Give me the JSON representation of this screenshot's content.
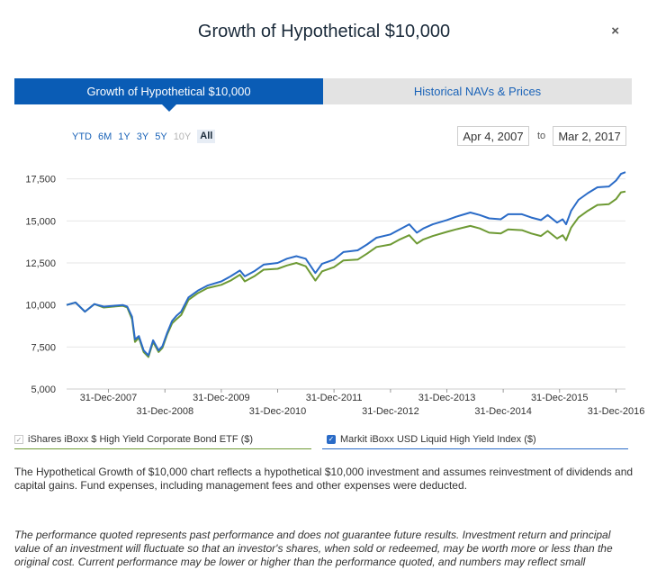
{
  "modal": {
    "title": "Growth of Hypothetical $10,000",
    "close_label": "×"
  },
  "tabs": [
    {
      "label": "Growth of Hypothetical $10,000",
      "active": true
    },
    {
      "label": "Historical NAVs & Prices",
      "active": false
    }
  ],
  "ranges": [
    {
      "label": "YTD",
      "state": "enabled"
    },
    {
      "label": "6M",
      "state": "enabled"
    },
    {
      "label": "1Y",
      "state": "enabled"
    },
    {
      "label": "3Y",
      "state": "enabled"
    },
    {
      "label": "5Y",
      "state": "enabled"
    },
    {
      "label": "10Y",
      "state": "disabled"
    },
    {
      "label": "All",
      "state": "active"
    }
  ],
  "date_range": {
    "from": "Apr 4, 2007",
    "separator": "to",
    "to": "Mar 2, 2017"
  },
  "legend": [
    {
      "label": "iShares iBoxx $ High Yield Corporate Bond ETF ($)",
      "checked": true,
      "color": "#6e9a34"
    },
    {
      "label": "Markit iBoxx USD Liquid High Yield Index ($)",
      "checked": true,
      "color": "#2a6bc7"
    }
  ],
  "description": "The Hypothetical Growth of $10,000 chart reflects a hypothetical $10,000 investment and assumes reinvestment of dividends and capital gains. Fund expenses, including management fees and other expenses were deducted.",
  "disclaimer": "The performance quoted represents past performance and does not guarantee future results. Investment return and principal value of an investment will fluctuate so that an investor's shares, when sold or redeemed, may be worth more or less than the original cost. Current performance may be lower or higher than the performance quoted, and numbers may reflect small",
  "chart_data": {
    "type": "line",
    "title": "",
    "xlabel": "",
    "ylabel": "",
    "x_range": [
      "2007-04-04",
      "2017-03-02"
    ],
    "ylim": [
      5000,
      18500
    ],
    "y_ticks": [
      {
        "value": 5000,
        "label": "5,000"
      },
      {
        "value": 7500,
        "label": "7,500"
      },
      {
        "value": 10000,
        "label": "10,000"
      },
      {
        "value": 12500,
        "label": "12,500"
      },
      {
        "value": 15000,
        "label": "15,000"
      },
      {
        "value": 17500,
        "label": "17,500"
      }
    ],
    "x_ticks": [
      {
        "date": "2007-12-31",
        "label": "31-Dec-2007"
      },
      {
        "date": "2008-12-31",
        "label": "31-Dec-2008"
      },
      {
        "date": "2009-12-31",
        "label": "31-Dec-2009"
      },
      {
        "date": "2010-12-31",
        "label": "31-Dec-2010"
      },
      {
        "date": "2011-12-31",
        "label": "31-Dec-2011"
      },
      {
        "date": "2012-12-31",
        "label": "31-Dec-2012"
      },
      {
        "date": "2013-12-31",
        "label": "31-Dec-2013"
      },
      {
        "date": "2014-12-31",
        "label": "31-Dec-2014"
      },
      {
        "date": "2015-12-31",
        "label": "31-Dec-2015"
      },
      {
        "date": "2016-12-31",
        "label": "31-Dec-2016"
      }
    ],
    "grid": {
      "horizontal": true,
      "vertical": false
    },
    "legend_position": "bottom",
    "series": [
      {
        "name": "iShares iBoxx $ High Yield Corporate Bond ETF ($)",
        "color": "#6e9a34",
        "points": [
          [
            "2007-04-04",
            10000
          ],
          [
            "2007-06-01",
            10150
          ],
          [
            "2007-08-01",
            9600
          ],
          [
            "2007-10-01",
            10050
          ],
          [
            "2007-12-01",
            9850
          ],
          [
            "2008-02-01",
            9900
          ],
          [
            "2008-04-01",
            9950
          ],
          [
            "2008-05-01",
            9850
          ],
          [
            "2008-06-01",
            9150
          ],
          [
            "2008-06-20",
            7800
          ],
          [
            "2008-07-15",
            8050
          ],
          [
            "2008-08-15",
            7200
          ],
          [
            "2008-09-15",
            6900
          ],
          [
            "2008-10-15",
            7800
          ],
          [
            "2008-11-20",
            7200
          ],
          [
            "2008-12-15",
            7450
          ],
          [
            "2009-01-15",
            8250
          ],
          [
            "2009-02-15",
            8900
          ],
          [
            "2009-03-15",
            9150
          ],
          [
            "2009-04-15",
            9400
          ],
          [
            "2009-06-01",
            10300
          ],
          [
            "2009-08-01",
            10700
          ],
          [
            "2009-10-01",
            11000
          ],
          [
            "2009-12-31",
            11200
          ],
          [
            "2010-03-01",
            11450
          ],
          [
            "2010-05-01",
            11800
          ],
          [
            "2010-06-01",
            11400
          ],
          [
            "2010-08-01",
            11700
          ],
          [
            "2010-10-01",
            12100
          ],
          [
            "2010-12-31",
            12150
          ],
          [
            "2011-03-01",
            12350
          ],
          [
            "2011-05-01",
            12500
          ],
          [
            "2011-07-01",
            12300
          ],
          [
            "2011-09-01",
            11450
          ],
          [
            "2011-10-15",
            12000
          ],
          [
            "2011-12-31",
            12250
          ],
          [
            "2012-03-01",
            12650
          ],
          [
            "2012-06-01",
            12700
          ],
          [
            "2012-08-01",
            13050
          ],
          [
            "2012-10-01",
            13450
          ],
          [
            "2012-12-31",
            13600
          ],
          [
            "2013-03-01",
            13900
          ],
          [
            "2013-05-01",
            14150
          ],
          [
            "2013-06-20",
            13650
          ],
          [
            "2013-08-01",
            13900
          ],
          [
            "2013-10-01",
            14100
          ],
          [
            "2013-12-31",
            14350
          ],
          [
            "2014-03-01",
            14500
          ],
          [
            "2014-06-01",
            14700
          ],
          [
            "2014-08-01",
            14550
          ],
          [
            "2014-10-01",
            14300
          ],
          [
            "2014-12-15",
            14250
          ],
          [
            "2015-02-01",
            14500
          ],
          [
            "2015-05-01",
            14450
          ],
          [
            "2015-07-01",
            14250
          ],
          [
            "2015-09-01",
            14100
          ],
          [
            "2015-10-15",
            14400
          ],
          [
            "2015-12-15",
            13950
          ],
          [
            "2016-01-20",
            14150
          ],
          [
            "2016-02-11",
            13850
          ],
          [
            "2016-03-15",
            14600
          ],
          [
            "2016-05-01",
            15200
          ],
          [
            "2016-07-01",
            15600
          ],
          [
            "2016-09-01",
            15950
          ],
          [
            "2016-11-15",
            16000
          ],
          [
            "2016-12-31",
            16300
          ],
          [
            "2017-02-01",
            16700
          ],
          [
            "2017-03-02",
            16750
          ]
        ]
      },
      {
        "name": "Markit iBoxx USD Liquid High Yield Index ($)",
        "color": "#2a6bc7",
        "points": [
          [
            "2007-04-04",
            10000
          ],
          [
            "2007-06-01",
            10150
          ],
          [
            "2007-08-01",
            9600
          ],
          [
            "2007-10-01",
            10050
          ],
          [
            "2007-12-01",
            9900
          ],
          [
            "2008-02-01",
            9950
          ],
          [
            "2008-04-01",
            10000
          ],
          [
            "2008-05-01",
            9900
          ],
          [
            "2008-06-01",
            9300
          ],
          [
            "2008-06-20",
            7950
          ],
          [
            "2008-07-15",
            8150
          ],
          [
            "2008-08-15",
            7300
          ],
          [
            "2008-09-15",
            7000
          ],
          [
            "2008-10-15",
            7900
          ],
          [
            "2008-11-20",
            7300
          ],
          [
            "2008-12-15",
            7550
          ],
          [
            "2009-01-15",
            8350
          ],
          [
            "2009-02-15",
            9050
          ],
          [
            "2009-03-15",
            9350
          ],
          [
            "2009-04-15",
            9600
          ],
          [
            "2009-06-01",
            10450
          ],
          [
            "2009-08-01",
            10850
          ],
          [
            "2009-10-01",
            11150
          ],
          [
            "2009-12-31",
            11400
          ],
          [
            "2010-03-01",
            11700
          ],
          [
            "2010-05-01",
            12050
          ],
          [
            "2010-06-01",
            11700
          ],
          [
            "2010-08-01",
            12000
          ],
          [
            "2010-10-01",
            12400
          ],
          [
            "2010-12-31",
            12500
          ],
          [
            "2011-03-01",
            12750
          ],
          [
            "2011-05-01",
            12900
          ],
          [
            "2011-07-01",
            12750
          ],
          [
            "2011-09-01",
            11900
          ],
          [
            "2011-10-15",
            12450
          ],
          [
            "2011-12-31",
            12700
          ],
          [
            "2012-03-01",
            13150
          ],
          [
            "2012-06-01",
            13250
          ],
          [
            "2012-08-01",
            13600
          ],
          [
            "2012-10-01",
            14000
          ],
          [
            "2012-12-31",
            14200
          ],
          [
            "2013-03-01",
            14500
          ],
          [
            "2013-05-01",
            14800
          ],
          [
            "2013-06-20",
            14300
          ],
          [
            "2013-08-01",
            14550
          ],
          [
            "2013-10-01",
            14800
          ],
          [
            "2013-12-31",
            15050
          ],
          [
            "2014-03-01",
            15250
          ],
          [
            "2014-06-01",
            15500
          ],
          [
            "2014-08-01",
            15350
          ],
          [
            "2014-10-01",
            15150
          ],
          [
            "2014-12-15",
            15100
          ],
          [
            "2015-02-01",
            15400
          ],
          [
            "2015-05-01",
            15400
          ],
          [
            "2015-07-01",
            15200
          ],
          [
            "2015-09-01",
            15050
          ],
          [
            "2015-10-15",
            15350
          ],
          [
            "2015-12-15",
            14900
          ],
          [
            "2016-01-20",
            15100
          ],
          [
            "2016-02-11",
            14800
          ],
          [
            "2016-03-15",
            15600
          ],
          [
            "2016-05-01",
            16250
          ],
          [
            "2016-07-01",
            16650
          ],
          [
            "2016-09-01",
            17000
          ],
          [
            "2016-11-15",
            17050
          ],
          [
            "2016-12-31",
            17400
          ],
          [
            "2017-02-01",
            17800
          ],
          [
            "2017-03-02",
            17900
          ]
        ]
      }
    ]
  }
}
